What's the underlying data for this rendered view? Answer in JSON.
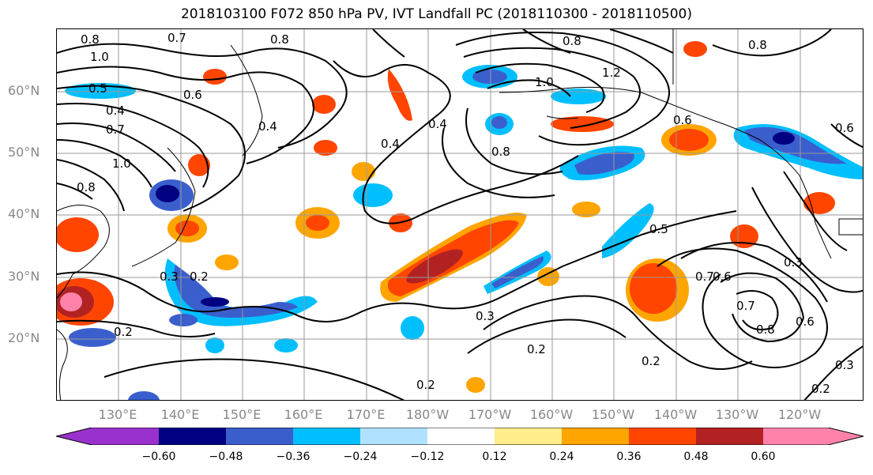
{
  "title": "2018103100 F072 850 hPa PV, IVT Landfall PC (2018110300 - 2018110500)",
  "lat_labels": [
    "60°N",
    "50°N",
    "40°N",
    "30°N",
    "20°N"
  ],
  "lon_labels": [
    "130°E",
    "140°E",
    "150°E",
    "160°E",
    "170°E",
    "180°W",
    "170°W",
    "160°W",
    "150°W",
    "140°W",
    "130°W",
    "120°W"
  ],
  "colorbar": {
    "ticks": [
      "−0.60",
      "−0.48",
      "−0.36",
      "−0.24",
      "−0.12",
      "0.12",
      "0.24",
      "0.36",
      "0.48",
      "0.60"
    ],
    "colors": [
      "#9932cc",
      "#000080",
      "#3a5fcd",
      "#00bfff",
      "#b0e2ff",
      "#ffffff",
      "#ffec8b",
      "#ffa500",
      "#ff4500",
      "#b22222",
      "#ff82ab"
    ]
  },
  "contour_labels": [
    "0.8",
    "1.0",
    "0.6",
    "0.8",
    "0.4",
    "0.7",
    "0.7",
    "1.0",
    "0.8",
    "0.4",
    "0.3",
    "0.2",
    "0.2",
    "0.4",
    "0.4",
    "0.5",
    "0.3",
    "0.2",
    "0.2",
    "0.7",
    "0.6",
    "0.7",
    "0.8",
    "0.6",
    "0.3",
    "0.2",
    "0.3",
    "0.2",
    "1.0",
    "0.8",
    "0.6",
    "0.5",
    "0.6",
    "0.8",
    "1.2",
    "0.8"
  ]
}
